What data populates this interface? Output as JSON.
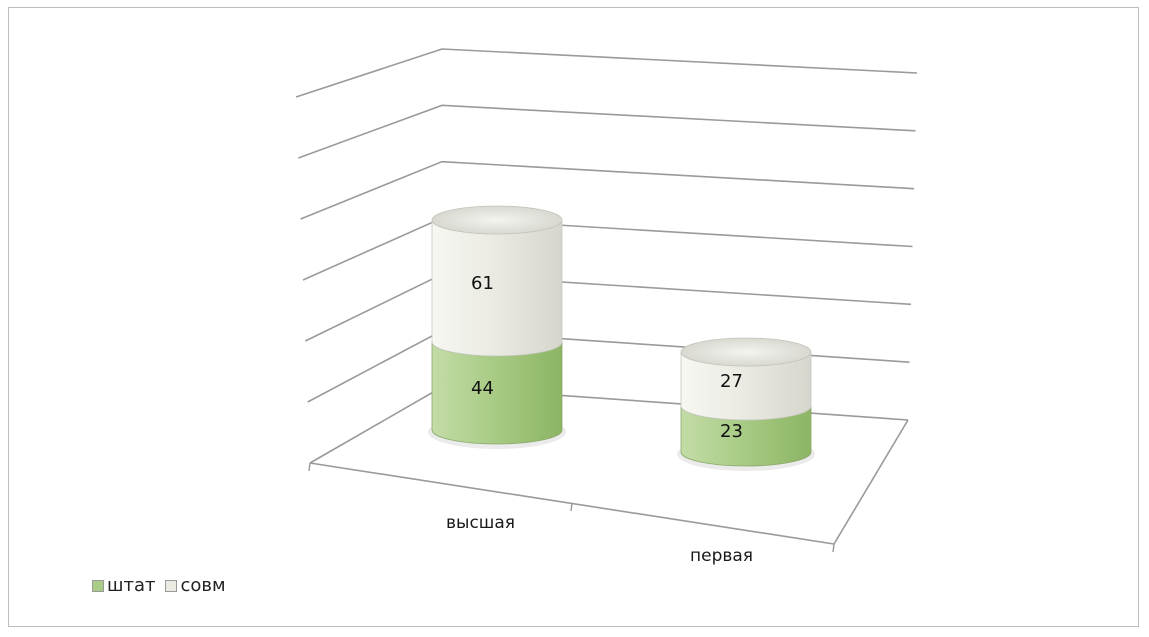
{
  "chart_data": {
    "type": "bar",
    "subtype": "stacked-3d-cylinder",
    "categories": [
      "высшая",
      "первая"
    ],
    "series": [
      {
        "name": "штат",
        "values": [
          44,
          23
        ],
        "color": "#a9cc86"
      },
      {
        "name": "совм",
        "values": [
          61,
          27
        ],
        "color": "#ebebe3"
      }
    ],
    "grid": true,
    "legend": "bottom-left",
    "data_labels": true
  }
}
